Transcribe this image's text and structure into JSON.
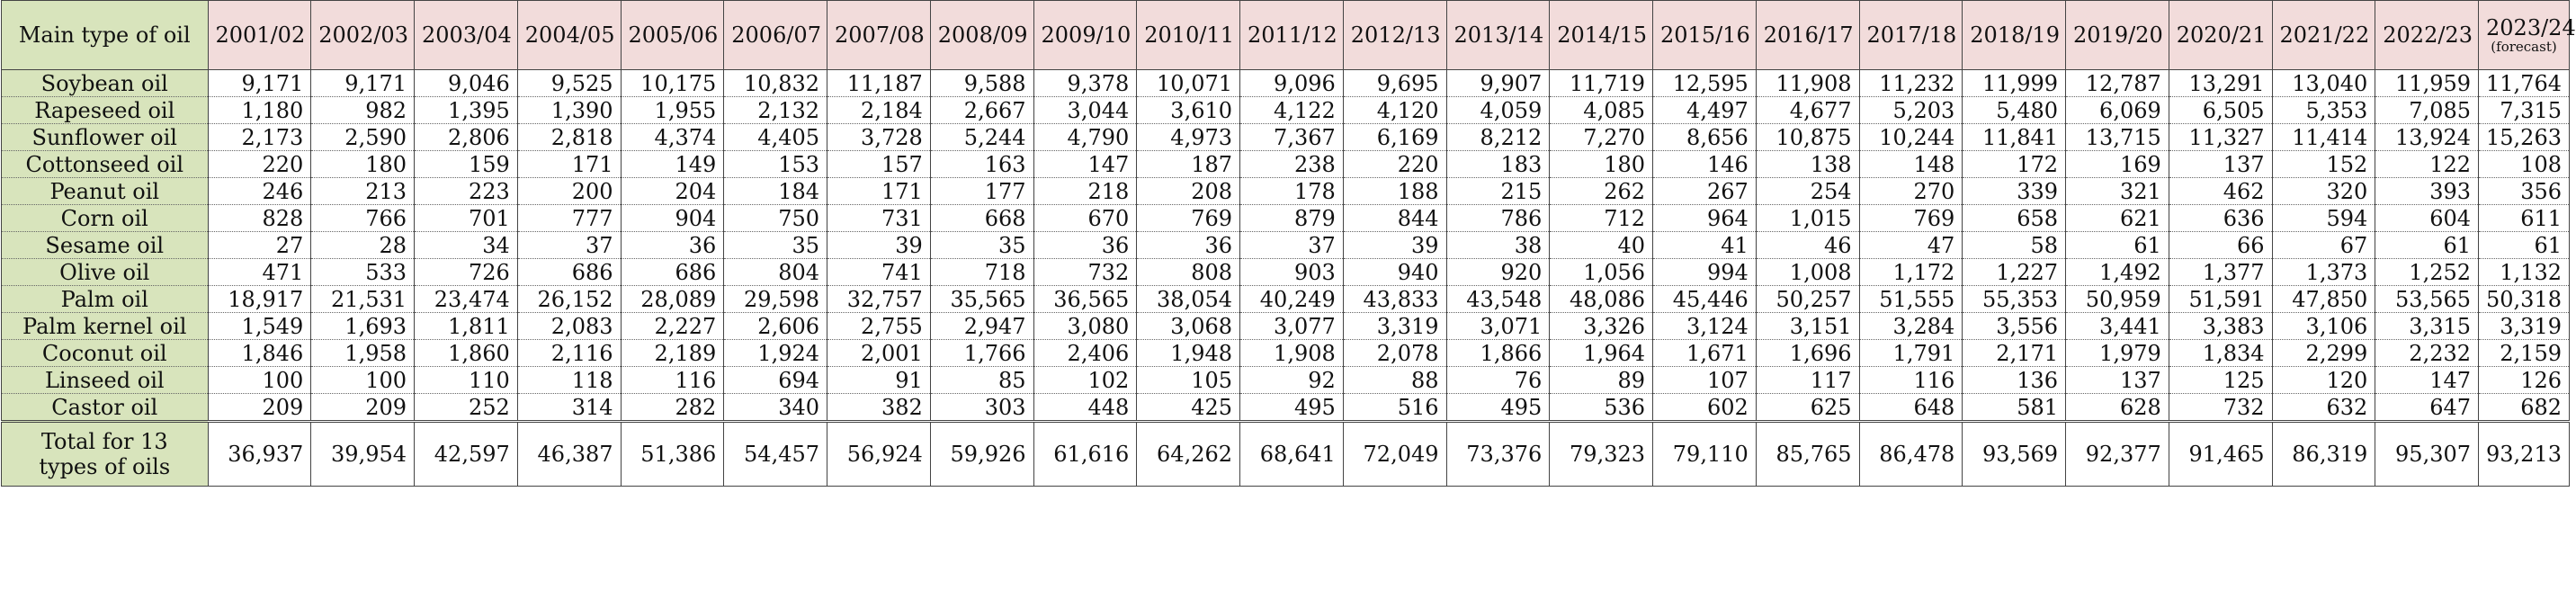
{
  "table": {
    "corner_header": "Main type of oil",
    "years": [
      "2001/02",
      "2002/03",
      "2003/04",
      "2004/05",
      "2005/06",
      "2006/07",
      "2007/08",
      "2008/09",
      "2009/10",
      "2010/11",
      "2011/12",
      "2012/13",
      "2013/14",
      "2014/15",
      "2015/16",
      "2016/17",
      "2017/18",
      "2018/19",
      "2019/20",
      "2020/21",
      "2021/22",
      "2022/23",
      "2023/24"
    ],
    "last_year_note": "(forecast)",
    "rows": [
      {
        "name": "Soybean oil",
        "values": [
          "9,171",
          "9,171",
          "9,046",
          "9,525",
          "10,175",
          "10,832",
          "11,187",
          "9,588",
          "9,378",
          "10,071",
          "9,096",
          "9,695",
          "9,907",
          "11,719",
          "12,595",
          "11,908",
          "11,232",
          "11,999",
          "12,787",
          "13,291",
          "13,040",
          "11,959",
          "11,764"
        ]
      },
      {
        "name": "Rapeseed oil",
        "values": [
          "1,180",
          "982",
          "1,395",
          "1,390",
          "1,955",
          "2,132",
          "2,184",
          "2,667",
          "3,044",
          "3,610",
          "4,122",
          "4,120",
          "4,059",
          "4,085",
          "4,497",
          "4,677",
          "5,203",
          "5,480",
          "6,069",
          "6,505",
          "5,353",
          "7,085",
          "7,315"
        ]
      },
      {
        "name": "Sunflower oil",
        "values": [
          "2,173",
          "2,590",
          "2,806",
          "2,818",
          "4,374",
          "4,405",
          "3,728",
          "5,244",
          "4,790",
          "4,973",
          "7,367",
          "6,169",
          "8,212",
          "7,270",
          "8,656",
          "10,875",
          "10,244",
          "11,841",
          "13,715",
          "11,327",
          "11,414",
          "13,924",
          "15,263"
        ]
      },
      {
        "name": "Cottonseed oil",
        "values": [
          "220",
          "180",
          "159",
          "171",
          "149",
          "153",
          "157",
          "163",
          "147",
          "187",
          "238",
          "220",
          "183",
          "180",
          "146",
          "138",
          "148",
          "172",
          "169",
          "137",
          "152",
          "122",
          "108"
        ]
      },
      {
        "name": "Peanut oil",
        "values": [
          "246",
          "213",
          "223",
          "200",
          "204",
          "184",
          "171",
          "177",
          "218",
          "208",
          "178",
          "188",
          "215",
          "262",
          "267",
          "254",
          "270",
          "339",
          "321",
          "462",
          "320",
          "393",
          "356"
        ]
      },
      {
        "name": "Corn oil",
        "values": [
          "828",
          "766",
          "701",
          "777",
          "904",
          "750",
          "731",
          "668",
          "670",
          "769",
          "879",
          "844",
          "786",
          "712",
          "964",
          "1,015",
          "769",
          "658",
          "621",
          "636",
          "594",
          "604",
          "611"
        ]
      },
      {
        "name": "Sesame oil",
        "values": [
          "27",
          "28",
          "34",
          "37",
          "36",
          "35",
          "39",
          "35",
          "36",
          "36",
          "37",
          "39",
          "38",
          "40",
          "41",
          "46",
          "47",
          "58",
          "61",
          "66",
          "67",
          "61",
          "61"
        ]
      },
      {
        "name": "Olive oil",
        "values": [
          "471",
          "533",
          "726",
          "686",
          "686",
          "804",
          "741",
          "718",
          "732",
          "808",
          "903",
          "940",
          "920",
          "1,056",
          "994",
          "1,008",
          "1,172",
          "1,227",
          "1,492",
          "1,377",
          "1,373",
          "1,252",
          "1,132"
        ]
      },
      {
        "name": "Palm oil",
        "values": [
          "18,917",
          "21,531",
          "23,474",
          "26,152",
          "28,089",
          "29,598",
          "32,757",
          "35,565",
          "36,565",
          "38,054",
          "40,249",
          "43,833",
          "43,548",
          "48,086",
          "45,446",
          "50,257",
          "51,555",
          "55,353",
          "50,959",
          "51,591",
          "47,850",
          "53,565",
          "50,318"
        ]
      },
      {
        "name": "Palm kernel oil",
        "values": [
          "1,549",
          "1,693",
          "1,811",
          "2,083",
          "2,227",
          "2,606",
          "2,755",
          "2,947",
          "3,080",
          "3,068",
          "3,077",
          "3,319",
          "3,071",
          "3,326",
          "3,124",
          "3,151",
          "3,284",
          "3,556",
          "3,441",
          "3,383",
          "3,106",
          "3,315",
          "3,319"
        ]
      },
      {
        "name": "Coconut oil",
        "values": [
          "1,846",
          "1,958",
          "1,860",
          "2,116",
          "2,189",
          "1,924",
          "2,001",
          "1,766",
          "2,406",
          "1,948",
          "1,908",
          "2,078",
          "1,866",
          "1,964",
          "1,671",
          "1,696",
          "1,791",
          "2,171",
          "1,979",
          "1,834",
          "2,299",
          "2,232",
          "2,159"
        ]
      },
      {
        "name": "Linseed oil",
        "values": [
          "100",
          "100",
          "110",
          "118",
          "116",
          "694",
          "91",
          "85",
          "102",
          "105",
          "92",
          "88",
          "76",
          "89",
          "107",
          "117",
          "116",
          "136",
          "137",
          "125",
          "120",
          "147",
          "126"
        ]
      },
      {
        "name": "Castor oil",
        "values": [
          "209",
          "209",
          "252",
          "314",
          "282",
          "340",
          "382",
          "303",
          "448",
          "425",
          "495",
          "516",
          "495",
          "536",
          "602",
          "625",
          "648",
          "581",
          "628",
          "732",
          "632",
          "647",
          "682"
        ]
      }
    ],
    "total": {
      "name": "Total for 13 types of oils",
      "values": [
        "36,937",
        "39,954",
        "42,597",
        "46,387",
        "51,386",
        "54,457",
        "56,924",
        "59,926",
        "61,616",
        "64,262",
        "68,641",
        "72,049",
        "73,376",
        "79,323",
        "79,110",
        "85,765",
        "86,478",
        "93,569",
        "92,377",
        "91,465",
        "86,319",
        "95,307",
        "93,213"
      ]
    }
  }
}
